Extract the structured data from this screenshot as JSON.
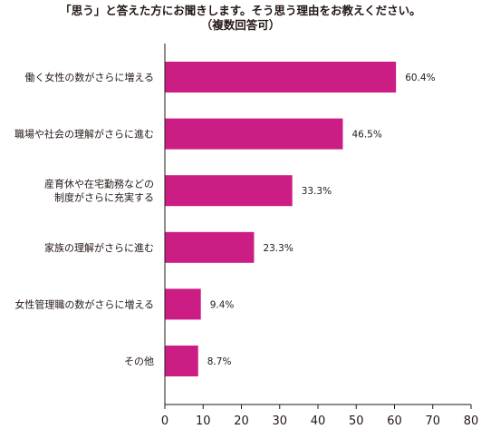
{
  "chart_data": {
    "type": "bar",
    "orientation": "horizontal",
    "title": "「思う」と答えた方にお聞きします。そう思う理由をお教えください。",
    "subtitle": "（複数回答可）",
    "categories": [
      [
        "働く女性の数がさらに増える"
      ],
      [
        "職場や社会の理解がさらに進む"
      ],
      [
        "産育休や在宅勤務などの",
        "制度がさらに充実する"
      ],
      [
        "家族の理解がさらに進む"
      ],
      [
        "女性管理職の数がさらに増える"
      ],
      [
        "その他"
      ]
    ],
    "values": [
      60.4,
      46.5,
      33.3,
      23.3,
      9.4,
      8.7
    ],
    "value_labels": [
      "60.4%",
      "46.5%",
      "33.3%",
      "23.3%",
      "9.4%",
      "8.7%"
    ],
    "xlim": [
      0,
      80
    ],
    "xticks": [
      "0",
      "10",
      "20",
      "30",
      "40",
      "50",
      "60",
      "70",
      "80"
    ],
    "bar_color": "#cc1d84",
    "grid": false
  }
}
